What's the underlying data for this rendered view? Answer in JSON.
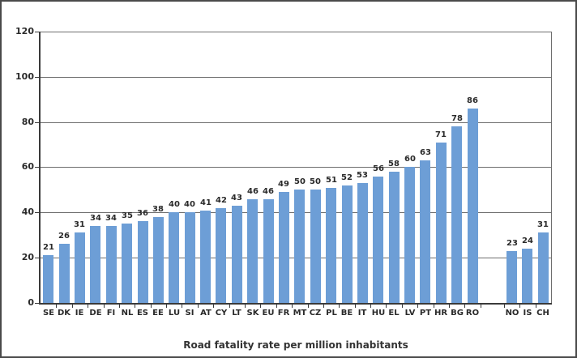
{
  "chart_data": {
    "type": "bar",
    "title": "Road fatality rate per million inhabitants",
    "xlabel": "",
    "ylabel": "",
    "ylim": [
      0,
      120
    ],
    "yticks": [
      0,
      20,
      40,
      60,
      80,
      100,
      120
    ],
    "grid": "horizontal",
    "legend_position": "none",
    "bar_color": "#6d9ed6",
    "grid_color": "#6e6e6e",
    "axis_color": "#3a3a3a",
    "frame_color": "#4a4a4a",
    "group_gap_slots": 1.5,
    "groups": [
      {
        "name": "eu-members-and-eu-average",
        "categories": [
          "SE",
          "DK",
          "IE",
          "DE",
          "FI",
          "NL",
          "ES",
          "EE",
          "LU",
          "SI",
          "AT",
          "CY",
          "LT",
          "SK",
          "EU",
          "FR",
          "MT",
          "CZ",
          "PL",
          "BE",
          "IT",
          "HU",
          "EL",
          "LV",
          "PT",
          "HR",
          "BG",
          "RO"
        ],
        "values": [
          21,
          26,
          31,
          34,
          34,
          35,
          36,
          38,
          40,
          40,
          41,
          42,
          43,
          46,
          46,
          49,
          50,
          50,
          51,
          52,
          53,
          56,
          58,
          60,
          63,
          71,
          78,
          86
        ]
      },
      {
        "name": "non-eu-countries",
        "categories": [
          "NO",
          "IS",
          "CH"
        ],
        "values": [
          23,
          24,
          31
        ]
      }
    ]
  }
}
